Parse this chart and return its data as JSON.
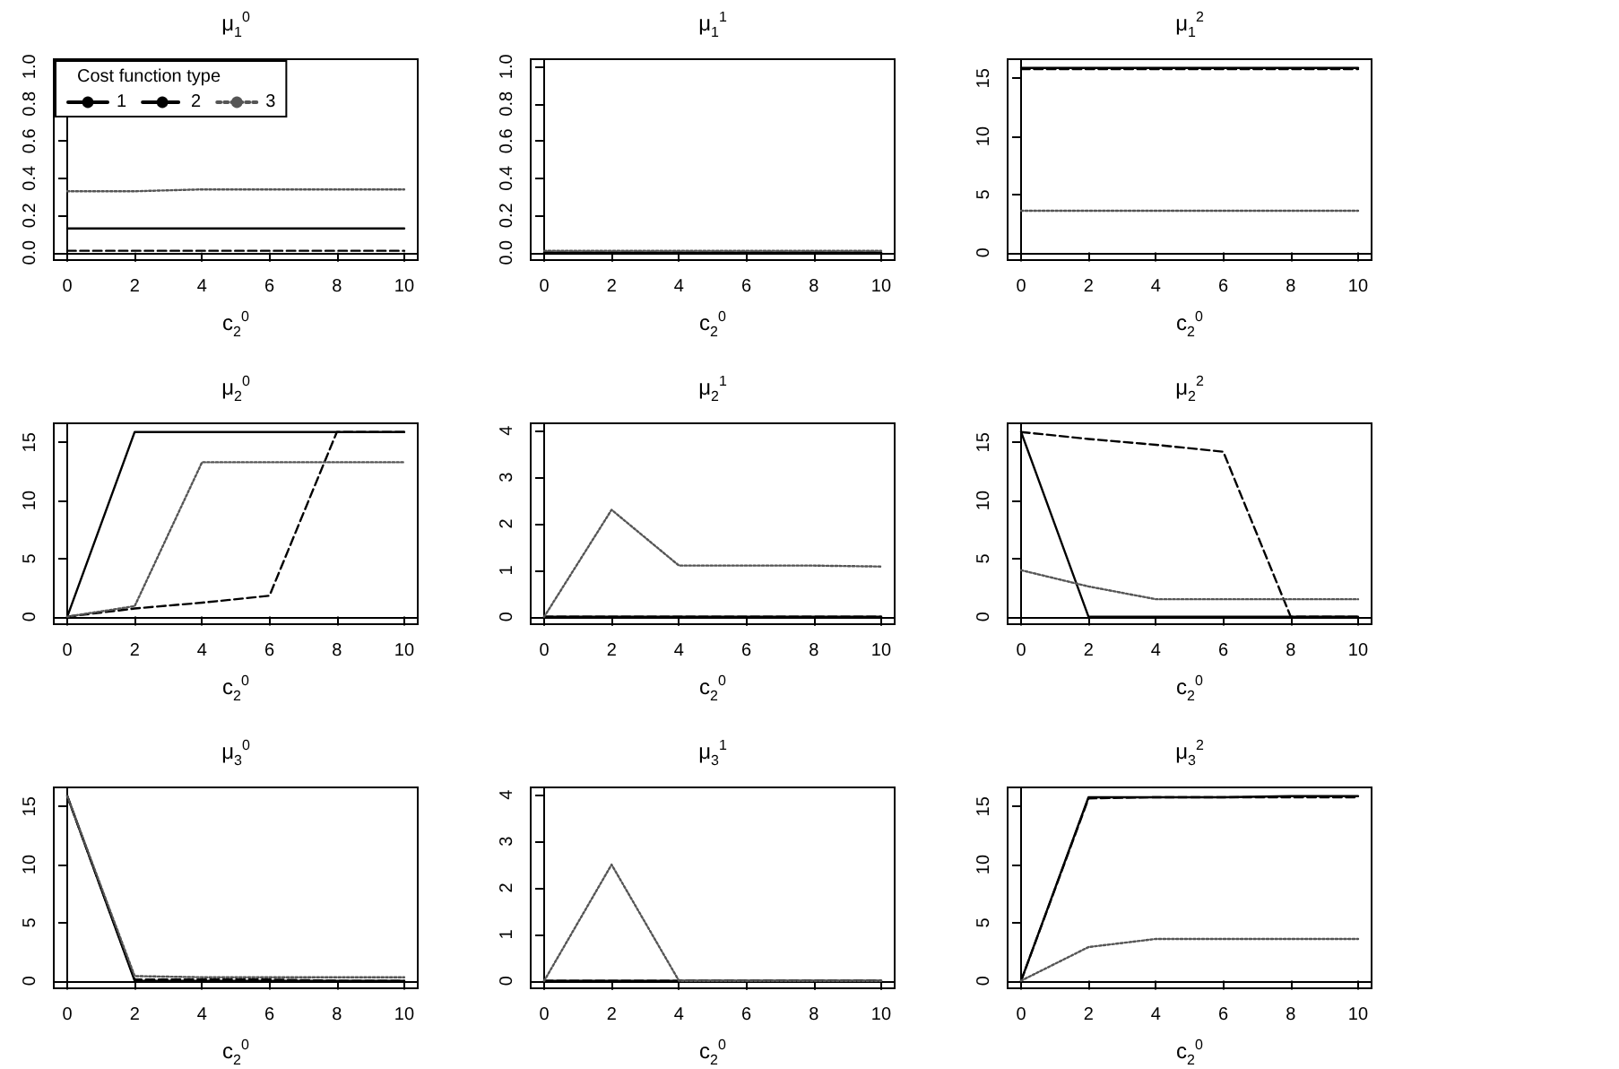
{
  "chart_data": [
    {
      "type": "line",
      "title": "μ$_{1}$$^{0}$",
      "xlabel": "c$_{2}$$^{0}$",
      "legend_title": "Cost function type",
      "legend": "top left",
      "marker": "none",
      "x": [
        0,
        2,
        4,
        6,
        8,
        10
      ],
      "xlim": [
        -0.4,
        10.4
      ],
      "xticks": [
        0,
        2,
        4,
        6,
        8,
        10
      ],
      "ylim": [
        -0.04,
        1.04
      ],
      "yticks": [
        {
          "value": 0,
          "label": "0.0"
        },
        {
          "value": 0.2,
          "label": "0.2"
        },
        {
          "value": 0.4,
          "label": "0.4"
        },
        {
          "value": 0.6,
          "label": "0.6"
        },
        {
          "value": 0.8,
          "label": "0.8"
        },
        {
          "value": 1,
          "label": "1.0"
        }
      ],
      "series": [
        {
          "name": "1",
          "color": "#000000",
          "line_style": "solid",
          "values": [
            0.13,
            0.13,
            0.13,
            0.13,
            0.13,
            0.13
          ]
        },
        {
          "name": "2",
          "color": "#000000",
          "line_style": "dashed",
          "values": [
            0.01,
            0.01,
            0.01,
            0.01,
            0.01,
            0.01
          ]
        },
        {
          "name": "3",
          "color": "#555555",
          "line_style": "dotted",
          "values": [
            0.33,
            0.33,
            0.34,
            0.34,
            0.34,
            0.34
          ]
        }
      ]
    },
    {
      "type": "line",
      "title": "μ$_{1}$$^{1}$",
      "xlabel": "c$_{2}$$^{0}$",
      "marker": "none",
      "x": [
        0,
        2,
        4,
        6,
        8,
        10
      ],
      "xlim": [
        -0.4,
        10.4
      ],
      "xticks": [
        0,
        2,
        4,
        6,
        8,
        10
      ],
      "ylim": [
        -0.04,
        1.04
      ],
      "yticks": [
        {
          "value": 0,
          "label": "0.0"
        },
        {
          "value": 0.2,
          "label": "0.2"
        },
        {
          "value": 0.4,
          "label": "0.4"
        },
        {
          "value": 0.6,
          "label": "0.6"
        },
        {
          "value": 0.8,
          "label": "0.8"
        },
        {
          "value": 1,
          "label": "1.0"
        }
      ],
      "series": [
        {
          "color": "#000000",
          "line_style": "solid",
          "values": [
            0,
            0,
            0,
            0,
            0,
            0
          ]
        },
        {
          "color": "#000000",
          "line_style": "dashed",
          "values": [
            0,
            0,
            0,
            0,
            0,
            0
          ]
        },
        {
          "color": "#555555",
          "line_style": "dotted",
          "values": [
            0.01,
            0.01,
            0.01,
            0.01,
            0.01,
            0.01
          ]
        }
      ]
    },
    {
      "type": "line",
      "title": "μ$_{1}$$^{2}$",
      "xlabel": "c$_{2}$$^{0}$",
      "marker": "none",
      "x": [
        0,
        2,
        4,
        6,
        8,
        10
      ],
      "xlim": [
        -0.4,
        10.4
      ],
      "xticks": [
        0,
        2,
        4,
        6,
        8,
        10
      ],
      "ylim": [
        -0.65,
        16.65
      ],
      "yticks": [
        0,
        5,
        10,
        15
      ],
      "series": [
        {
          "color": "#000000",
          "line_style": "solid",
          "values": [
            15.9,
            15.9,
            15.9,
            15.9,
            15.9,
            15.9
          ]
        },
        {
          "color": "#000000",
          "line_style": "dashed",
          "values": [
            15.8,
            15.8,
            15.8,
            15.8,
            15.8,
            15.8
          ]
        },
        {
          "color": "#555555",
          "line_style": "dotted",
          "values": [
            3.6,
            3.6,
            3.6,
            3.6,
            3.6,
            3.6
          ]
        }
      ]
    },
    {
      "type": "line",
      "title": "μ$_{2}$$^{0}$",
      "xlabel": "c$_{2}$$^{0}$",
      "marker": "none",
      "x": [
        0,
        2,
        4,
        6,
        8,
        10
      ],
      "xlim": [
        -0.4,
        10.4
      ],
      "xticks": [
        0,
        2,
        4,
        6,
        8,
        10
      ],
      "ylim": [
        -0.65,
        16.65
      ],
      "yticks": [
        0,
        5,
        10,
        15
      ],
      "series": [
        {
          "color": "#000000",
          "line_style": "solid",
          "values": [
            0,
            15.9,
            15.9,
            15.9,
            15.9,
            15.9
          ]
        },
        {
          "color": "#000000",
          "line_style": "dashed",
          "values": [
            0,
            0.7,
            1.2,
            1.8,
            15.9,
            15.9
          ]
        },
        {
          "color": "#555555",
          "line_style": "dotted",
          "values": [
            0,
            0.9,
            13.3,
            13.3,
            13.3,
            13.3
          ]
        }
      ]
    },
    {
      "type": "line",
      "title": "μ$_{2}$$^{1}$",
      "xlabel": "c$_{2}$$^{0}$",
      "marker": "none",
      "x": [
        0,
        2,
        4,
        6,
        8,
        10
      ],
      "xlim": [
        -0.4,
        10.4
      ],
      "xticks": [
        0,
        2,
        4,
        6,
        8,
        10
      ],
      "ylim": [
        -0.16,
        4.16
      ],
      "yticks": [
        0,
        1,
        2,
        3,
        4
      ],
      "series": [
        {
          "color": "#000000",
          "line_style": "solid",
          "values": [
            0,
            0,
            0,
            0,
            0,
            0
          ]
        },
        {
          "color": "#000000",
          "line_style": "dashed",
          "values": [
            0,
            0,
            0,
            0,
            0,
            0
          ]
        },
        {
          "color": "#555555",
          "line_style": "dotted",
          "values": [
            0,
            2.3,
            1.1,
            1.1,
            1.1,
            1.08
          ]
        }
      ]
    },
    {
      "type": "line",
      "title": "μ$_{2}$$^{2}$",
      "xlabel": "c$_{2}$$^{0}$",
      "marker": "none",
      "x": [
        0,
        2,
        4,
        6,
        8,
        10
      ],
      "xlim": [
        -0.4,
        10.4
      ],
      "xticks": [
        0,
        2,
        4,
        6,
        8,
        10
      ],
      "ylim": [
        -0.65,
        16.65
      ],
      "yticks": [
        0,
        5,
        10,
        15
      ],
      "series": [
        {
          "color": "#000000",
          "line_style": "solid",
          "values": [
            15.9,
            0,
            0,
            0,
            0,
            0
          ]
        },
        {
          "color": "#000000",
          "line_style": "dashed",
          "values": [
            15.9,
            15.3,
            14.8,
            14.2,
            0,
            0
          ]
        },
        {
          "color": "#555555",
          "line_style": "dotted",
          "values": [
            4,
            2.6,
            1.5,
            1.5,
            1.5,
            1.5
          ]
        }
      ]
    },
    {
      "type": "line",
      "title": "μ$_{3}$$^{0}$",
      "xlabel": "c$_{2}$$^{0}$",
      "marker": "none",
      "x": [
        0,
        2,
        4,
        6,
        8,
        10
      ],
      "xlim": [
        -0.4,
        10.4
      ],
      "xticks": [
        0,
        2,
        4,
        6,
        8,
        10
      ],
      "ylim": [
        -0.65,
        16.65
      ],
      "yticks": [
        0,
        5,
        10,
        15
      ],
      "series": [
        {
          "color": "#000000",
          "line_style": "solid",
          "values": [
            15.9,
            0,
            0,
            0,
            0,
            0
          ]
        },
        {
          "color": "#000000",
          "line_style": "dashed",
          "values": [
            15.9,
            0.1,
            0.1,
            0.1,
            0,
            0
          ]
        },
        {
          "color": "#555555",
          "line_style": "dotted",
          "values": [
            15.9,
            0.4,
            0.3,
            0.3,
            0.3,
            0.3
          ]
        }
      ]
    },
    {
      "type": "line",
      "title": "μ$_{3}$$^{1}$",
      "xlabel": "c$_{2}$$^{0}$",
      "marker": "none",
      "x": [
        0,
        2,
        4,
        6,
        8,
        10
      ],
      "xlim": [
        -0.4,
        10.4
      ],
      "xticks": [
        0,
        2,
        4,
        6,
        8,
        10
      ],
      "ylim": [
        -0.16,
        4.16
      ],
      "yticks": [
        0,
        1,
        2,
        3,
        4
      ],
      "series": [
        {
          "color": "#000000",
          "line_style": "solid",
          "values": [
            0,
            0,
            0,
            0,
            0,
            0
          ]
        },
        {
          "color": "#000000",
          "line_style": "dashed",
          "values": [
            0,
            0,
            0,
            0,
            0,
            0
          ]
        },
        {
          "color": "#555555",
          "line_style": "dotted",
          "values": [
            0,
            2.5,
            0,
            0,
            0,
            0
          ]
        }
      ]
    },
    {
      "type": "line",
      "title": "μ$_{3}$$^{2}$",
      "xlabel": "c$_{2}$$^{0}$",
      "marker": "none",
      "x": [
        0,
        2,
        4,
        6,
        8,
        10
      ],
      "xlim": [
        -0.4,
        10.4
      ],
      "xticks": [
        0,
        2,
        4,
        6,
        8,
        10
      ],
      "ylim": [
        -0.65,
        16.65
      ],
      "yticks": [
        0,
        5,
        10,
        15
      ],
      "series": [
        {
          "color": "#000000",
          "line_style": "solid",
          "values": [
            0,
            15.8,
            15.8,
            15.8,
            15.9,
            15.9
          ]
        },
        {
          "color": "#000000",
          "line_style": "dashed",
          "values": [
            0,
            15.7,
            15.8,
            15.8,
            15.8,
            15.8
          ]
        },
        {
          "color": "#555555",
          "line_style": "dotted",
          "values": [
            0,
            2.9,
            3.6,
            3.6,
            3.6,
            3.6
          ]
        }
      ]
    }
  ]
}
